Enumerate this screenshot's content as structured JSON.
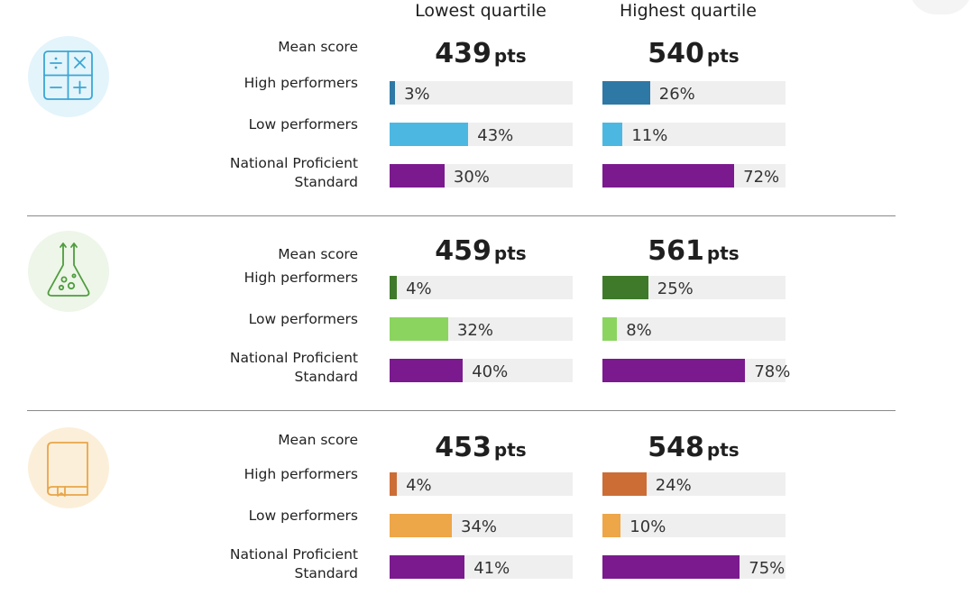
{
  "columns": {
    "low": "Lowest quartile",
    "high": "Highest quartile"
  },
  "unit": "pts",
  "row_labels": {
    "mean": "Mean score",
    "high": "High performers",
    "low": "Low performers",
    "nps_line1": "National Proficient",
    "nps_line2": "Standard"
  },
  "sections": [
    {
      "icon": "calculator-icon",
      "colors": {
        "circle": "#e3f4fb",
        "icon": "#3aa6d5",
        "high": "#2e78a5",
        "low": "#4cb8e2",
        "nps": "#7b1a8e"
      }
    },
    {
      "icon": "flask-icon",
      "colors": {
        "circle": "#edf6e8",
        "icon": "#4f9c3e",
        "high": "#3f7a2a",
        "low": "#8bd460",
        "nps": "#7b1a8e"
      }
    },
    {
      "icon": "book-icon",
      "colors": {
        "circle": "#fcefd9",
        "icon": "#e8a64a",
        "high": "#cc6d36",
        "low": "#eda648",
        "nps": "#7b1a8e"
      }
    }
  ],
  "chart_data": {
    "type": "bar",
    "orientation": "horizontal",
    "scale_max": 100,
    "categories": [
      "High performers",
      "Low performers",
      "National Proficient Standard"
    ],
    "panels": [
      {
        "icon": "calculator-icon",
        "mean_score": {
          "low": 439,
          "high": 540
        },
        "series": [
          {
            "name": "Lowest quartile",
            "values": [
              3,
              43,
              30
            ],
            "labels": [
              "3%",
              "43%",
              "30%"
            ]
          },
          {
            "name": "Highest quartile",
            "values": [
              26,
              11,
              72
            ],
            "labels": [
              "26%",
              "11%",
              "72%"
            ]
          }
        ]
      },
      {
        "icon": "flask-icon",
        "mean_score": {
          "low": 459,
          "high": 561
        },
        "series": [
          {
            "name": "Lowest quartile",
            "values": [
              4,
              32,
              40
            ],
            "labels": [
              "4%",
              "32%",
              "40%"
            ]
          },
          {
            "name": "Highest quartile",
            "values": [
              25,
              8,
              78
            ],
            "labels": [
              "25%",
              "8%",
              "78%"
            ]
          }
        ]
      },
      {
        "icon": "book-icon",
        "mean_score": {
          "low": 453,
          "high": 548
        },
        "series": [
          {
            "name": "Lowest quartile",
            "values": [
              4,
              34,
              41
            ],
            "labels": [
              "4%",
              "34%",
              "41%"
            ]
          },
          {
            "name": "Highest quartile",
            "values": [
              24,
              10,
              75
            ],
            "labels": [
              "24%",
              "10%",
              "75%"
            ]
          }
        ]
      }
    ]
  }
}
